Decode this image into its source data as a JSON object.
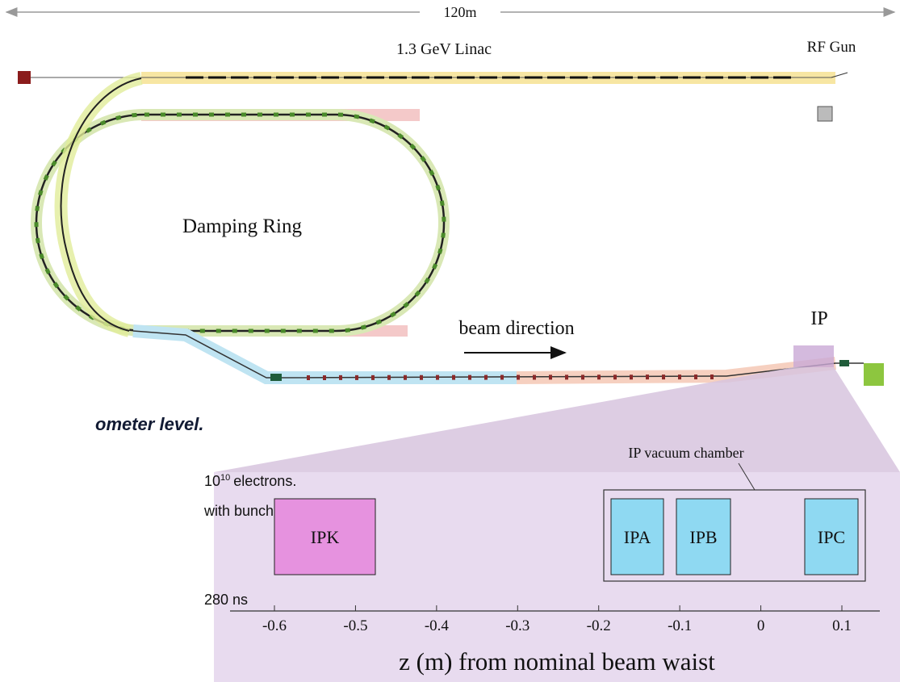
{
  "layout": {
    "scale_label": "120m",
    "linac": "1.3 GeV Linac",
    "rf_gun": "RF Gun",
    "ring": "Damping Ring",
    "beam_direction": "beam direction",
    "ip": "IP"
  },
  "slide_text": {
    "headline": "ometer level.",
    "line1": {
      "base": "10",
      "sup": "10",
      "rest": "electrons."
    },
    "line2": "with bunch",
    "line3": "280 ns"
  },
  "zoom": {
    "chamber_label": "IP vacuum chamber",
    "boxes": [
      "IPK",
      "IPA",
      "IPB",
      "IPC"
    ],
    "axis": {
      "ticks": [
        -0.6,
        -0.5,
        -0.4,
        -0.3,
        -0.2,
        -0.1,
        0,
        0.1
      ],
      "label": "z (m) from nominal beam waist"
    }
  }
}
